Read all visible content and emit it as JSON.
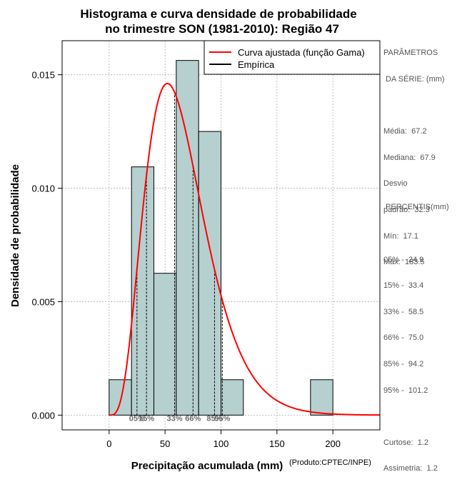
{
  "chart_data": {
    "type": "histogram",
    "title_line1": "Histograma e curva densidade de probabilidade",
    "title_line2": "no trimestre SON (1981-2010): Região 47",
    "xlabel": "Precipitação acumulada (mm)",
    "ylabel": "Densidade de probabilidade",
    "credit": "(Produto:CPTEC/INPE)",
    "xlim": [
      -42,
      242
    ],
    "ylim": [
      -0.00065,
      0.0165
    ],
    "xticks": [
      0,
      50,
      100,
      150,
      200
    ],
    "yticks": [
      0.0,
      0.005,
      0.01,
      0.015
    ],
    "ytick_labels": [
      "0.000",
      "0.005",
      "0.010",
      "0.015"
    ],
    "bins": [
      {
        "x0": 0,
        "x1": 20,
        "density": 0.00156
      },
      {
        "x0": 20,
        "x1": 40,
        "density": 0.01094
      },
      {
        "x0": 40,
        "x1": 60,
        "density": 0.00625
      },
      {
        "x0": 60,
        "x1": 80,
        "density": 0.01563
      },
      {
        "x0": 80,
        "x1": 100,
        "density": 0.0125
      },
      {
        "x0": 100,
        "x1": 120,
        "density": 0.00156
      },
      {
        "x0": 120,
        "x1": 140,
        "density": 0
      },
      {
        "x0": 140,
        "x1": 160,
        "density": 0
      },
      {
        "x0": 160,
        "x1": 180,
        "density": 0
      },
      {
        "x0": 180,
        "x1": 200,
        "density": 0.00156
      }
    ],
    "gamma_curve": {
      "name": "Curva ajustada (função Gama)",
      "shape": 4.8,
      "scale": 13.7,
      "color": "#ff0000"
    },
    "empirical": {
      "name": "Empírica",
      "color": "#000000"
    },
    "percentile_markers": [
      {
        "label": "05%",
        "value": 24.9
      },
      {
        "label": "15%",
        "value": 33.4
      },
      {
        "label": "33%",
        "value": 58.5
      },
      {
        "label": "66%",
        "value": 75.0
      },
      {
        "label": "85%",
        "value": 94.2
      },
      {
        "label": "95%",
        "value": 101.2
      }
    ],
    "colors": {
      "bar_fill": "#b6cfcf",
      "bar_stroke": "#000000",
      "grid": "#b0b0b0",
      "curve": "#ff0000"
    }
  },
  "side_panel": {
    "params_title_1": "PARÂMETROS",
    "params_title_2": " DA SÉRIE: (mm)",
    "stats": [
      {
        "label": "Média:",
        "value": "67.2"
      },
      {
        "label": "Mediana:",
        "value": "67.9"
      },
      {
        "label": "Desvio",
        "value": ""
      },
      {
        "label": "padrão:",
        "value": "32.3"
      },
      {
        "label": "Mín:",
        "value": "17.1"
      },
      {
        "label": "Máx:",
        "value": "183.5"
      }
    ],
    "percentis_title": " PERCENTIS(mm)",
    "percentis": [
      {
        "label": "05% -",
        "value": "24.9"
      },
      {
        "label": "15% -",
        "value": "33.4"
      },
      {
        "label": "33% -",
        "value": "58.5"
      },
      {
        "label": "66% -",
        "value": "75.0"
      },
      {
        "label": "85% -",
        "value": "94.2"
      },
      {
        "label": "95% -",
        "value": "101.2"
      }
    ],
    "curtose": {
      "label": "Curtose:",
      "value": "1.2"
    },
    "assimetria": {
      "label": "Assimetria:",
      "value": "1.2"
    }
  }
}
